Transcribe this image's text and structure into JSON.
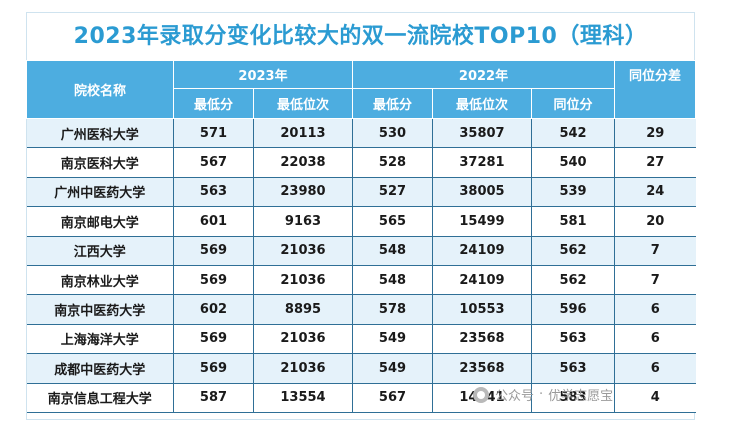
{
  "title": "2023年录取分变化比较大的双一流院校TOP10（理科）",
  "header": {
    "school": "院校名称",
    "y2023": "2023年",
    "y2022": "2022年",
    "diff": "同位分差",
    "min_score": "最低分",
    "min_rank": "最低位次",
    "min_score_22": "最低分",
    "min_rank_22": "最低位次",
    "equiv_score": "同位分"
  },
  "rows": [
    {
      "school": "广州医科大学",
      "s23": "571",
      "r23": "20113",
      "s22": "530",
      "r22": "35807",
      "eq": "542",
      "diff": "29"
    },
    {
      "school": "南京医科大学",
      "s23": "567",
      "r23": "22038",
      "s22": "528",
      "r22": "37281",
      "eq": "540",
      "diff": "27"
    },
    {
      "school": "广州中医药大学",
      "s23": "563",
      "r23": "23980",
      "s22": "527",
      "r22": "38005",
      "eq": "539",
      "diff": "24"
    },
    {
      "school": "南京邮电大学",
      "s23": "601",
      "r23": "9163",
      "s22": "565",
      "r22": "15499",
      "eq": "581",
      "diff": "20"
    },
    {
      "school": "江西大学",
      "s23": "569",
      "r23": "21036",
      "s22": "548",
      "r22": "24109",
      "eq": "562",
      "diff": "7"
    },
    {
      "school": "南京林业大学",
      "s23": "569",
      "r23": "21036",
      "s22": "548",
      "r22": "24109",
      "eq": "562",
      "diff": "7"
    },
    {
      "school": "南京中医药大学",
      "s23": "602",
      "r23": "8895",
      "s22": "578",
      "r22": "10553",
      "eq": "596",
      "diff": "6"
    },
    {
      "school": "上海海洋大学",
      "s23": "569",
      "r23": "21036",
      "s22": "549",
      "r22": "23568",
      "eq": "563",
      "diff": "6"
    },
    {
      "school": "成都中医药大学",
      "s23": "569",
      "r23": "21036",
      "s22": "549",
      "r22": "23568",
      "eq": "563",
      "diff": "6"
    },
    {
      "school": "南京信息工程大学",
      "s23": "587",
      "r23": "13554",
      "s22": "567",
      "r22": "14641",
      "eq": "583",
      "diff": "4"
    }
  ],
  "watermark": {
    "icon": "wechat-logo-icon",
    "public": "公众号",
    "sep": "·",
    "name": "优学志愿宝"
  }
}
